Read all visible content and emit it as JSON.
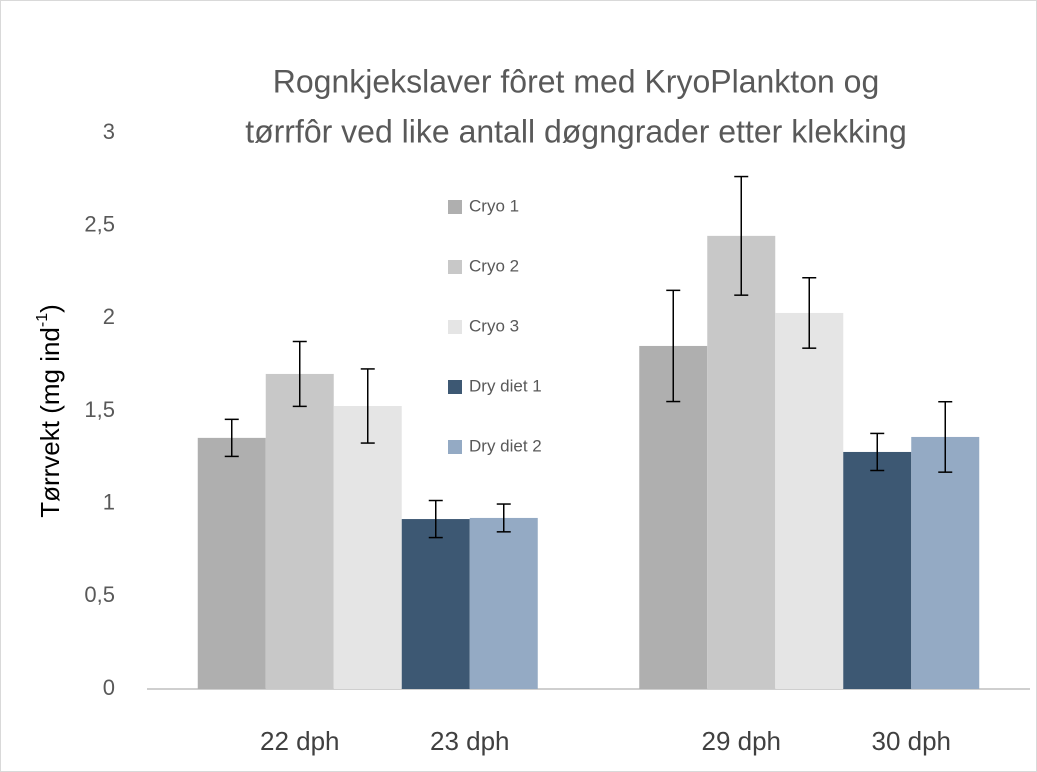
{
  "chart_data": {
    "type": "bar",
    "title": [
      "Rognkjekslaver fôret med KryoPlankton og",
      "tørrfôr ved like antall døgngrader etter klekking"
    ],
    "y_label": {
      "text": "Tørrvekt (mg ind",
      "superscript": "-1",
      "suffix": ")"
    },
    "categories": [
      "22 dph",
      "23 dph",
      "29 dph",
      "30 dph"
    ],
    "series": [
      {
        "name": "Cryo 1",
        "color": "#afafaf",
        "values": [
          1.355,
          null,
          1.851,
          null
        ],
        "errors": [
          0.1,
          null,
          0.3,
          null
        ]
      },
      {
        "name": "Cryo 2",
        "color": "#c8c8c8",
        "values": [
          1.7,
          null,
          2.445,
          null
        ],
        "errors": [
          0.175,
          null,
          0.32,
          null
        ]
      },
      {
        "name": "Cryo 3",
        "color": "#e5e5e5",
        "values": [
          1.527,
          null,
          2.029,
          null
        ],
        "errors": [
          0.2,
          null,
          0.19,
          null
        ]
      },
      {
        "name": "Dry diet 1",
        "color": "#3d5873",
        "values": [
          null,
          0.917,
          null,
          1.279
        ],
        "errors": [
          null,
          0.1,
          null,
          0.1
        ]
      },
      {
        "name": "Dry diet 2",
        "color": "#94aac4",
        "values": [
          null,
          0.923,
          null,
          1.36
        ],
        "errors": [
          null,
          0.075,
          null,
          0.19
        ]
      }
    ],
    "ylim": [
      0,
      3
    ],
    "yticks": [
      0,
      {
        "value": 0.5,
        "label": "0,5"
      },
      1,
      {
        "value": 1.5,
        "label": "1,5"
      },
      2,
      {
        "value": 2.5,
        "label": "2,5"
      },
      3
    ],
    "legend": "center"
  }
}
